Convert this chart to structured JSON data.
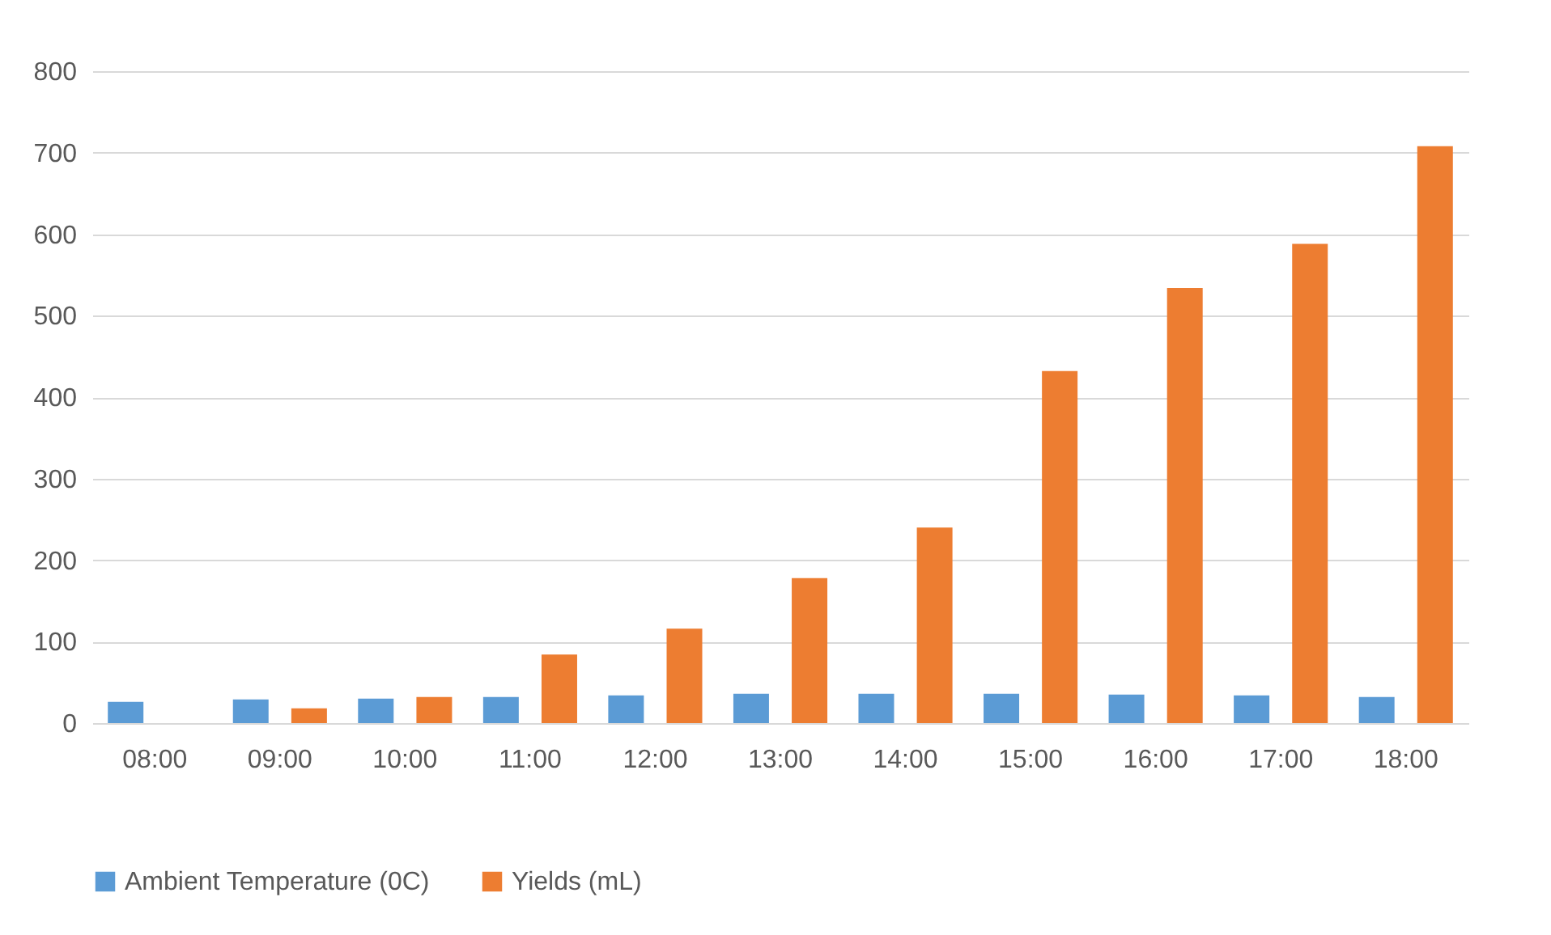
{
  "chart_data": {
    "type": "bar",
    "categories": [
      "08:00",
      "09:00",
      "10:00",
      "11:00",
      "12:00",
      "13:00",
      "14:00",
      "15:00",
      "16:00",
      "17:00",
      "18:00"
    ],
    "series": [
      {
        "name": "Ambient Temperature (0C)",
        "color": "#5b9bd5",
        "values": [
          26,
          29,
          30,
          32,
          34,
          36,
          36,
          36,
          35,
          34,
          32
        ]
      },
      {
        "name": "Yields (mL)",
        "color": "#ed7d31",
        "values": [
          0,
          18,
          32,
          84,
          116,
          178,
          240,
          432,
          534,
          588,
          708
        ]
      }
    ],
    "ylim": [
      0,
      800
    ],
    "yticks": [
      0,
      100,
      200,
      300,
      400,
      500,
      600,
      700,
      800
    ],
    "grid": "y",
    "legend": "bottom"
  }
}
